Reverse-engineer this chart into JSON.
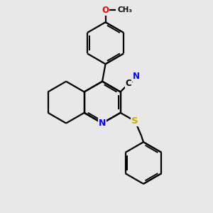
{
  "background_color": "#e8e8e8",
  "bond_color": "#000000",
  "atom_colors": {
    "N": "#0000ff",
    "O": "#ff0000",
    "S": "#ccaa00",
    "C": "#000000"
  },
  "figsize": [
    3.0,
    3.0
  ],
  "dpi": 100
}
